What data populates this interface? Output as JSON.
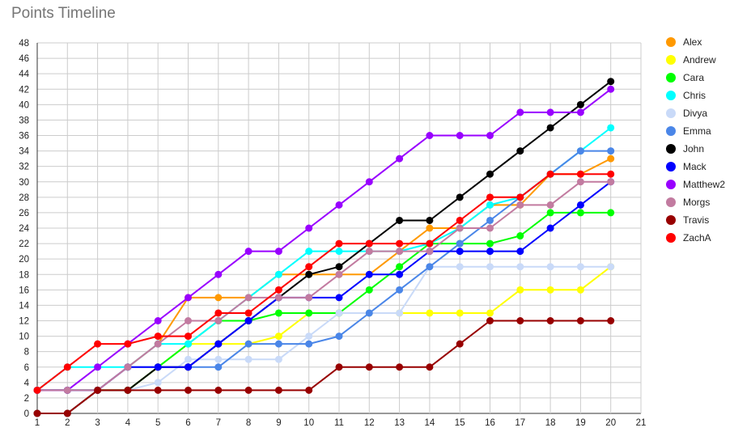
{
  "chart_data": {
    "type": "line",
    "title": "Points Timeline",
    "xlabel": "",
    "ylabel": "",
    "xlim": [
      1,
      21
    ],
    "ylim": [
      0,
      48
    ],
    "x_ticks": [
      1,
      2,
      3,
      4,
      5,
      6,
      7,
      8,
      9,
      10,
      11,
      12,
      13,
      14,
      15,
      16,
      17,
      18,
      19,
      20,
      21
    ],
    "y_ticks": [
      0,
      2,
      4,
      6,
      8,
      10,
      12,
      14,
      16,
      18,
      20,
      22,
      24,
      26,
      28,
      30,
      32,
      34,
      36,
      38,
      40,
      42,
      44,
      46,
      48
    ],
    "grid": true,
    "legend_position": "right",
    "x": [
      1,
      2,
      3,
      4,
      5,
      6,
      7,
      8,
      9,
      10,
      11,
      12,
      13,
      14,
      15,
      16,
      17,
      18,
      19,
      20
    ],
    "series": [
      {
        "name": "Alex",
        "color": "#ff9900",
        "values": [
          3,
          3,
          3,
          6,
          9,
          15,
          15,
          15,
          18,
          18,
          18,
          18,
          21,
          24,
          24,
          27,
          27,
          31,
          31,
          33
        ]
      },
      {
        "name": "Andrew",
        "color": "#ffff00",
        "values": [
          3,
          3,
          3,
          3,
          6,
          9,
          9,
          9,
          10,
          13,
          13,
          13,
          13,
          13,
          13,
          13,
          16,
          16,
          16,
          19
        ]
      },
      {
        "name": "Cara",
        "color": "#00ff00",
        "values": [
          3,
          3,
          3,
          3,
          6,
          9,
          12,
          12,
          13,
          13,
          13,
          16,
          19,
          22,
          22,
          22,
          23,
          26,
          26,
          26
        ]
      },
      {
        "name": "Chris",
        "color": "#00ffff",
        "values": [
          3,
          6,
          6,
          6,
          9,
          9,
          12,
          15,
          18,
          21,
          21,
          21,
          21,
          22,
          24,
          27,
          28,
          31,
          34,
          37
        ]
      },
      {
        "name": "Divya",
        "color": "#c9daf8",
        "values": [
          3,
          3,
          3,
          3,
          4,
          7,
          7,
          7,
          7,
          10,
          13,
          13,
          13,
          19,
          19,
          19,
          19,
          19,
          19,
          19
        ]
      },
      {
        "name": "Emma",
        "color": "#4a86e8",
        "values": [
          3,
          3,
          3,
          6,
          6,
          6,
          6,
          9,
          9,
          9,
          10,
          13,
          16,
          19,
          22,
          25,
          28,
          31,
          34,
          34
        ]
      },
      {
        "name": "John",
        "color": "#000000",
        "values": [
          0,
          0,
          3,
          3,
          6,
          6,
          9,
          12,
          15,
          18,
          19,
          22,
          25,
          25,
          28,
          31,
          34,
          37,
          40,
          43
        ]
      },
      {
        "name": "Mack",
        "color": "#0000ff",
        "values": [
          3,
          3,
          3,
          6,
          6,
          6,
          9,
          12,
          15,
          15,
          15,
          18,
          18,
          21,
          21,
          21,
          21,
          24,
          27,
          30
        ]
      },
      {
        "name": "Matthew2",
        "color": "#9900ff",
        "values": [
          3,
          3,
          6,
          9,
          12,
          15,
          18,
          21,
          21,
          24,
          27,
          30,
          33,
          36,
          36,
          36,
          39,
          39,
          39,
          42
        ]
      },
      {
        "name": "Morgs",
        "color": "#c27ba0",
        "values": [
          3,
          3,
          3,
          6,
          9,
          12,
          12,
          15,
          15,
          15,
          18,
          21,
          21,
          21,
          24,
          24,
          27,
          27,
          30,
          30
        ]
      },
      {
        "name": "Travis",
        "color": "#980000",
        "values": [
          0,
          0,
          3,
          3,
          3,
          3,
          3,
          3,
          3,
          3,
          6,
          6,
          6,
          6,
          9,
          12,
          12,
          12,
          12,
          12
        ]
      },
      {
        "name": "ZachA",
        "color": "#ff0000",
        "values": [
          3,
          6,
          9,
          9,
          10,
          10,
          13,
          13,
          16,
          19,
          22,
          22,
          22,
          22,
          25,
          28,
          28,
          31,
          31,
          31
        ]
      }
    ]
  }
}
